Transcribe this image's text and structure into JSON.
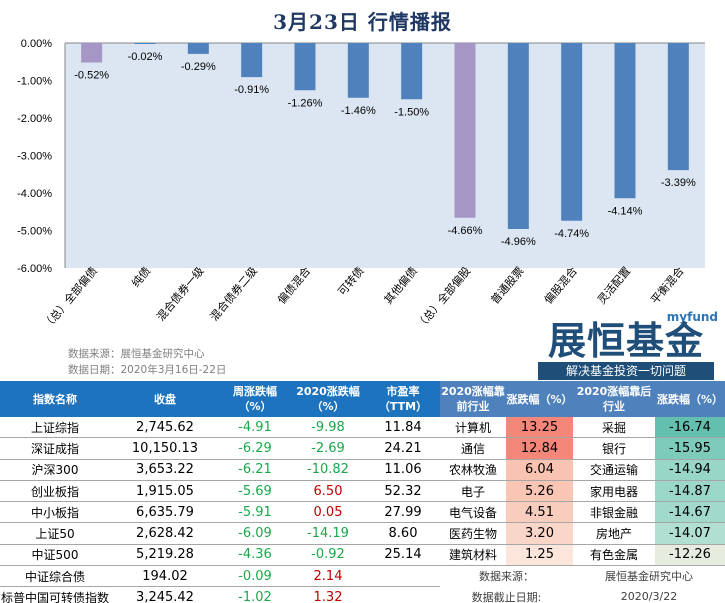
{
  "title": "3月23日  行情播报",
  "chart_data": {
    "type": "bar",
    "title": "3月23日  行情播报",
    "categories": [
      "（总）全部偏债",
      "纯债",
      "混合债券一级",
      "混合债券二级",
      "偏债混合",
      "可转债",
      "其他偏债",
      "（总）全部偏股",
      "普通股票",
      "偏股混合",
      "灵活配置",
      "平衡混合"
    ],
    "values": [
      -0.52,
      -0.02,
      -0.29,
      -0.91,
      -1.26,
      -1.46,
      -1.5,
      -4.66,
      -4.96,
      -4.74,
      -4.14,
      -3.39
    ],
    "data_labels": [
      "-0.52%",
      "-0.02%",
      "-0.29%",
      "-0.91%",
      "-1.26%",
      "-1.46%",
      "-1.50%",
      "-4.66%",
      "-4.96%",
      "-4.74%",
      "-4.14%",
      "-3.39%"
    ],
    "yticks": [
      "0.00%",
      "-1.00%",
      "-2.00%",
      "-3.00%",
      "-4.00%",
      "-5.00%",
      "-6.00%"
    ],
    "ylim": [
      -6,
      0
    ],
    "unit": "%",
    "colors": [
      "#a596c5",
      "#4f81bd",
      "#4f81bd",
      "#4f81bd",
      "#4f81bd",
      "#4f81bd",
      "#4f81bd",
      "#a596c5",
      "#4f81bd",
      "#4f81bd",
      "#4f81bd",
      "#4f81bd"
    ],
    "plot_bg": "#dce6f2",
    "grid": false
  },
  "source": {
    "line1": "数据来源：展恒基金研究中心",
    "line2": "数据日期：2020年3月16日-22日"
  },
  "logo": {
    "brand_en": "myfund",
    "brand_cn": "展恒基金",
    "slogan": "解决基金投资一切问题"
  },
  "index_table": {
    "headers": [
      "指数名称",
      "收盘",
      "周涨跌幅（%）",
      "2020涨跌幅（%）",
      "市盈率（TTM）"
    ],
    "rows": [
      {
        "name": "上证综指",
        "close": "2,745.62",
        "week": "-4.91",
        "ytd": "-9.98",
        "pe": "11.84"
      },
      {
        "name": "深证成指",
        "close": "10,150.13",
        "week": "-6.29",
        "ytd": "-2.69",
        "pe": "24.21"
      },
      {
        "name": "沪深300",
        "close": "3,653.22",
        "week": "-6.21",
        "ytd": "-10.82",
        "pe": "11.06"
      },
      {
        "name": "创业板指",
        "close": "1,915.05",
        "week": "-5.69",
        "ytd": "6.50",
        "pe": "52.32"
      },
      {
        "name": "中小板指",
        "close": "6,635.79",
        "week": "-5.91",
        "ytd": "0.05",
        "pe": "27.99"
      },
      {
        "name": "上证50",
        "close": "2,628.42",
        "week": "-6.09",
        "ytd": "-14.19",
        "pe": "8.60"
      },
      {
        "name": "中证500",
        "close": "5,219.28",
        "week": "-4.36",
        "ytd": "-0.92",
        "pe": "25.14"
      },
      {
        "name": "中证综合债",
        "close": "194.02",
        "week": "-0.09",
        "ytd": "2.14",
        "pe": ""
      },
      {
        "name": "标普中国可转债指数",
        "close": "3,245.42",
        "week": "-1.02",
        "ytd": "1.32",
        "pe": ""
      }
    ]
  },
  "industry_table": {
    "headers": [
      "2020涨幅靠前行业",
      "涨跌幅（%）",
      "2020涨幅靠后行业",
      "涨跌幅（%）"
    ],
    "rows": [
      {
        "top": "计算机",
        "top_val": "13.25",
        "bottom": "采掘",
        "bottom_val": "-16.74"
      },
      {
        "top": "通信",
        "top_val": "12.84",
        "bottom": "银行",
        "bottom_val": "-15.95"
      },
      {
        "top": "农林牧渔",
        "top_val": "6.04",
        "bottom": "交通运输",
        "bottom_val": "-14.94"
      },
      {
        "top": "电子",
        "top_val": "5.26",
        "bottom": "家用电器",
        "bottom_val": "-14.87"
      },
      {
        "top": "电气设备",
        "top_val": "4.51",
        "bottom": "非银金融",
        "bottom_val": "-14.67"
      },
      {
        "top": "医药生物",
        "top_val": "3.20",
        "bottom": "房地产",
        "bottom_val": "-14.07"
      },
      {
        "top": "建筑材料",
        "top_val": "1.25",
        "bottom": "有色金属",
        "bottom_val": "-12.26"
      }
    ],
    "top_colors": [
      "#f4877a",
      "#f4877a",
      "#f9c3b1",
      "#f9c6b6",
      "#f9cdbd",
      "#fad6c8",
      "#fce6db"
    ],
    "bottom_colors": [
      "#64bfae",
      "#7ccbbb",
      "#98d6c8",
      "#9ad7c9",
      "#a1dacd",
      "#b1e0d3",
      "#e6ede0"
    ],
    "source_label": "数据来源：",
    "source_value": "展恒基金研究中心",
    "date_label": "数据截止日期:",
    "date_value": "2020/3/22"
  }
}
